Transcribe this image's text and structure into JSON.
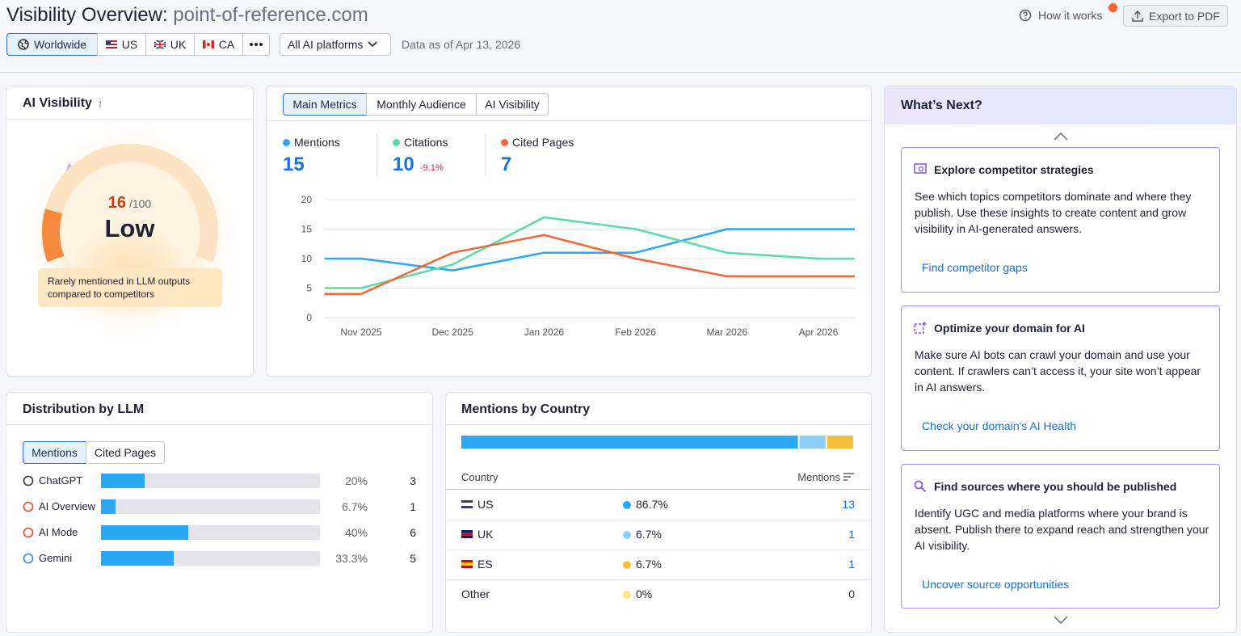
{
  "header": {
    "title": "Visibility Overview:",
    "domain": "point-of-reference.com",
    "help": "How it works",
    "export": "Export to PDF"
  },
  "filters": {
    "regions": [
      "Worldwide",
      "US",
      "UK",
      "CA"
    ],
    "platform": "All AI platforms",
    "data_as_of": "Data as of Apr 13, 2026"
  },
  "ai_visibility": {
    "title": "AI Visibility",
    "score": 16,
    "score_max": "/100",
    "level": "Low",
    "description": "Rarely mentioned in LLM outputs compared to competitors"
  },
  "metrics": {
    "tabs": [
      "Main Metrics",
      "Monthly Audience",
      "AI Visibility"
    ],
    "summary": [
      {
        "value": 15
      },
      {
        "value": 10,
        "change": "-9.1%"
      },
      {
        "value": 7
      }
    ]
  },
  "chart_data": {
    "type": "line",
    "categories": [
      "Nov 2025",
      "Dec 2025",
      "Jan 2026",
      "Feb 2026",
      "Mar 2026",
      "Apr 2026"
    ],
    "series": [
      {
        "name": "Mentions",
        "color": "#2ba8f4",
        "values": [
          10,
          8,
          11,
          11,
          15,
          15
        ]
      },
      {
        "name": "Citations",
        "color": "#5bdba5",
        "values": [
          5,
          9,
          17,
          15,
          11,
          10
        ]
      },
      {
        "name": "Cited Pages",
        "color": "#f2673a",
        "values": [
          4,
          11,
          14,
          10,
          7,
          7
        ]
      }
    ],
    "ylim": [
      0,
      20
    ],
    "yticks": [
      0,
      5,
      10,
      15,
      20
    ],
    "grid": true
  },
  "llm_distribution": {
    "title": "Distribution by LLM",
    "tabs": [
      "Mentions",
      "Cited Pages"
    ],
    "color": "#2ba8f4",
    "rows": [
      {
        "name": "ChatGPT",
        "share": 20,
        "share_label": "20%",
        "count": 3
      },
      {
        "name": "AI Overview",
        "share": 6.7,
        "share_label": "6.7%",
        "count": 1
      },
      {
        "name": "AI Mode",
        "share": 40,
        "share_label": "40%",
        "count": 6
      },
      {
        "name": "Gemini",
        "share": 33.3,
        "share_label": "33.3%",
        "count": 5
      }
    ]
  },
  "country_mentions": {
    "title": "Mentions by Country",
    "columns": [
      "Country",
      "Mentions"
    ],
    "rows": [
      {
        "name": "US",
        "share": 86.7,
        "share_label": "86.7%",
        "count": 13,
        "color": "#2ba8f4"
      },
      {
        "name": "UK",
        "share": 6.7,
        "share_label": "6.7%",
        "count": 1,
        "color": "#8ccff8"
      },
      {
        "name": "ES",
        "share": 6.7,
        "share_label": "6.7%",
        "count": 1,
        "color": "#f7be3a"
      },
      {
        "name": "Other",
        "share": 0,
        "share_label": "0%",
        "count": 0,
        "color": "#fbe38a"
      }
    ]
  },
  "whats_next": {
    "title": "What’s Next?",
    "cards": [
      {
        "title": "Explore competitor strategies",
        "text": "See which topics competitors dominate and where they publish. Use these insights to create content and grow visibility in AI-generated answers.",
        "link": "Find competitor gaps"
      },
      {
        "title": "Optimize your domain for AI",
        "text": "Make sure AI bots can crawl your domain and use your content. If crawlers can’t access it, your site won’t appear in AI answers.",
        "link": "Check your domain's AI Health"
      },
      {
        "title": "Find sources where you should be published",
        "text": "Identify UGC and media platforms where your brand is absent. Publish there to expand reach and strengthen your AI visibility.",
        "link": "Uncover source opportunities"
      }
    ]
  }
}
